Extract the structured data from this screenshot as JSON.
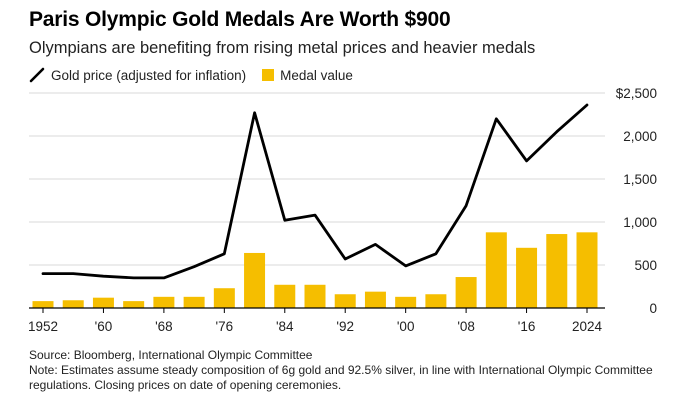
{
  "title": "Paris Olympic Gold Medals Are Worth $900",
  "subtitle": "Olympians are benefiting from rising metal prices and heavier medals",
  "legend": {
    "line_label": "Gold price (adjusted for inflation)",
    "bar_label": "Medal value"
  },
  "colors": {
    "line": "#000000",
    "bar": "#F5BE00",
    "axis": "#000000",
    "grid": "#d9d9d9"
  },
  "chart_data": {
    "type": "bar",
    "combo": "bar+line",
    "x": [
      1952,
      1956,
      1960,
      1964,
      1968,
      1972,
      1976,
      1980,
      1984,
      1988,
      1992,
      1996,
      2000,
      2004,
      2008,
      2012,
      2016,
      2020,
      2024
    ],
    "x_tick_labels": [
      {
        "x": 1952,
        "label": "1952"
      },
      {
        "x": 1960,
        "label": "'60"
      },
      {
        "x": 1968,
        "label": "'68"
      },
      {
        "x": 1976,
        "label": "'76"
      },
      {
        "x": 1984,
        "label": "'84"
      },
      {
        "x": 1992,
        "label": "'92"
      },
      {
        "x": 2000,
        "label": "'00"
      },
      {
        "x": 2008,
        "label": "'08"
      },
      {
        "x": 2016,
        "label": "'16"
      },
      {
        "x": 2024,
        "label": "2024"
      }
    ],
    "y_ticks": [
      0,
      500,
      1000,
      1500,
      2000,
      2500
    ],
    "y_tick_labels": [
      "0",
      "500",
      "1,000",
      "1,500",
      "2,000",
      "$2,500"
    ],
    "ylim": [
      0,
      2500
    ],
    "grid": true,
    "y_axis_side": "right",
    "series": [
      {
        "name": "Gold price (adjusted for inflation)",
        "type": "line",
        "values": [
          400,
          400,
          370,
          350,
          350,
          480,
          630,
          2270,
          1020,
          1080,
          570,
          740,
          490,
          630,
          1190,
          2200,
          1710,
          2050,
          2360
        ]
      },
      {
        "name": "Medal value",
        "type": "bar",
        "values": [
          80,
          90,
          120,
          80,
          130,
          130,
          230,
          640,
          270,
          270,
          160,
          190,
          130,
          160,
          360,
          880,
          700,
          860,
          880
        ]
      }
    ]
  },
  "footer": {
    "source": "Source: Bloomberg, International Olympic Committee",
    "note": "Note: Estimates assume steady composition of 6g gold and 92.5% silver, in line with International Olympic Committee regulations. Closing prices on date of opening ceremonies."
  }
}
